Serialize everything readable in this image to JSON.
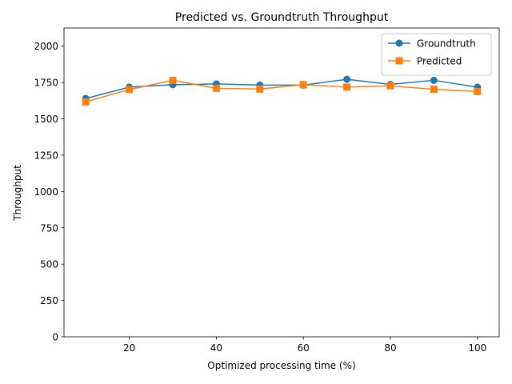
{
  "chart_data": {
    "type": "line",
    "title": "Predicted vs. Groundtruth Throughput",
    "xlabel": "Optimized processing time (%)",
    "ylabel": "Throughput",
    "x": [
      10,
      20,
      30,
      40,
      50,
      60,
      70,
      80,
      90,
      100
    ],
    "xlim": [
      5,
      105
    ],
    "ylim": [
      0,
      2125
    ],
    "xticks": [
      20,
      40,
      60,
      80,
      100
    ],
    "yticks": [
      0,
      250,
      500,
      750,
      1000,
      1250,
      1500,
      1750,
      2000
    ],
    "grid": false,
    "legend": "top-right",
    "series": [
      {
        "name": "Groundtruth",
        "color": "#1f77b4",
        "marker": "circle",
        "values": [
          1640,
          1718,
          1735,
          1740,
          1732,
          1732,
          1772,
          1737,
          1765,
          1718
        ]
      },
      {
        "name": "Predicted",
        "color": "#ff7f0e",
        "marker": "square",
        "values": [
          1617,
          1702,
          1765,
          1710,
          1705,
          1735,
          1718,
          1727,
          1703,
          1688
        ]
      }
    ]
  }
}
